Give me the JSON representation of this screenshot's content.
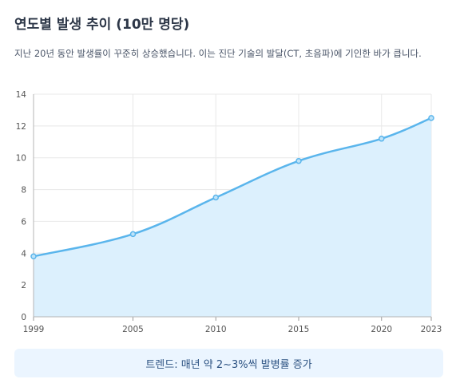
{
  "header": {
    "title": "연도별 발생 추이 (10만 명당)",
    "description": "지난 20년 동안 발생률이 꾸준히 상승했습니다. 이는 진단 기술의 발달(CT, 초음파)에 기인한 바가 큽니다."
  },
  "chart_data": {
    "type": "area",
    "x": [
      1999,
      2005,
      2010,
      2015,
      2020,
      2023
    ],
    "values": [
      3.8,
      5.2,
      7.5,
      9.8,
      11.2,
      12.5
    ],
    "ylim": [
      0,
      14
    ],
    "yticks": [
      0,
      2,
      4,
      6,
      8,
      10,
      12,
      14
    ],
    "xticks": [
      1999,
      2005,
      2010,
      2015,
      2020,
      2023
    ],
    "grid": true,
    "colors": {
      "line": "#5ab5ec",
      "fill": "#dcf0fd",
      "grid": "#e8e8e8",
      "axis": "#555555"
    }
  },
  "footer": {
    "trend": "트렌드: 매년 약 2~3%씩 발병률 증가"
  }
}
